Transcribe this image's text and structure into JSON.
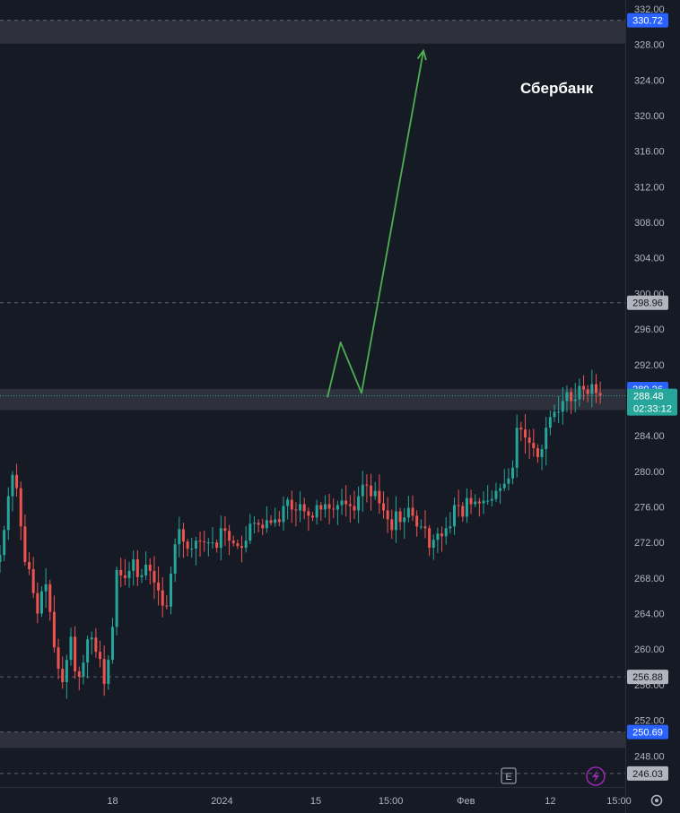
{
  "chart_data": {
    "type": "candlestick",
    "title": "Сбербанк",
    "y_axis": {
      "range": [
        244.5,
        333.0
      ],
      "ticks": [
        "332.00",
        "328.00",
        "324.00",
        "320.00",
        "316.00",
        "312.00",
        "308.00",
        "304.00",
        "300.00",
        "296.00",
        "292.00",
        "288.00",
        "284.00",
        "280.00",
        "276.00",
        "272.00",
        "268.00",
        "264.00",
        "260.00",
        "256.00",
        "252.00",
        "248.00"
      ]
    },
    "x_axis": {
      "ticks": [
        {
          "label": "18",
          "x": 0.18
        },
        {
          "label": "2024",
          "x": 0.355
        },
        {
          "label": "15",
          "x": 0.505
        },
        {
          "label": "15:00",
          "x": 0.625
        },
        {
          "label": "Фев",
          "x": 0.745
        },
        {
          "label": "12",
          "x": 0.88
        },
        {
          "label": "15:00",
          "x": 0.99
        }
      ]
    },
    "zones": [
      {
        "from": 328.1,
        "to": 330.72,
        "color": "#2e313c"
      },
      {
        "from": 286.9,
        "to": 289.26,
        "color": "#2e313c"
      },
      {
        "from": 248.9,
        "to": 250.69,
        "color": "#2e313c"
      }
    ],
    "dashed_levels": [
      330.72,
      298.96,
      256.88,
      250.69,
      246.03
    ],
    "price_tags": [
      {
        "label": "330.72",
        "value": 330.72,
        "color": "#2962ff"
      },
      {
        "label": "298.96",
        "value": 298.96,
        "color": "#b2b5be"
      },
      {
        "label": "289.26",
        "value": 289.26,
        "color": "#2962ff"
      },
      {
        "label": "256.88",
        "value": 256.88,
        "color": "#b2b5be"
      },
      {
        "label": "250.69",
        "value": 250.69,
        "color": "#2962ff"
      },
      {
        "label": "246.03",
        "value": 246.03,
        "color": "#b2b5be"
      }
    ],
    "last_price": {
      "label": "288.48",
      "countdown": "02:33:12",
      "value": 288.48,
      "color": "#26a69a"
    },
    "forecast_arrow": {
      "color": "#4caf50",
      "points": [
        [
          0.0,
          288.3
        ],
        [
          0.077,
          294.5
        ],
        [
          0.2,
          288.8
        ],
        [
          0.563,
          327.3
        ]
      ]
    },
    "close_series": [
      270.6,
      273.4,
      277.2,
      279.6,
      278.1,
      273.8,
      269.8,
      269.0,
      266.3,
      264.0,
      266.5,
      267.3,
      264.2,
      260.2,
      257.8,
      256.3,
      258.8,
      261.4,
      257.5,
      256.9,
      258.5,
      261.1,
      261.3,
      259.7,
      258.9,
      256.1,
      258.8,
      262.5,
      268.9,
      268.3,
      268.0,
      268.8,
      270.1,
      268.1,
      268.3,
      269.5,
      268.8,
      267.5,
      266.6,
      264.9,
      264.8,
      268.5,
      271.8,
      273.5,
      272.1,
      271.3,
      271.3,
      272.2,
      272.1,
      272.0,
      272.0,
      272.0,
      271.4,
      273.6,
      273.3,
      272.2,
      271.9,
      271.6,
      271.4,
      272.2,
      274.1,
      274.2,
      274.0,
      273.6,
      274.5,
      274.2,
      274.6,
      274.3,
      276.1,
      276.8,
      275.7,
      275.6,
      276.3,
      275.5,
      275.0,
      274.8,
      276.2,
      275.7,
      276.3,
      275.8,
      275.7,
      276.2,
      276.7,
      276.3,
      276.1,
      275.6,
      277.2,
      278.5,
      278.4,
      277.2,
      277.8,
      276.4,
      275.6,
      274.6,
      273.4,
      275.5,
      274.3,
      274.8,
      275.9,
      275.0,
      273.8,
      273.8,
      273.6,
      271.4,
      272.3,
      273.0,
      272.7,
      273.6,
      273.8,
      276.2,
      276.1,
      274.9,
      277.0,
      276.3,
      276.6,
      276.4,
      276.7,
      276.7,
      276.9,
      277.8,
      278.1,
      278.6,
      279.2,
      280.4,
      284.9,
      284.7,
      283.8,
      283.2,
      282.6,
      281.6,
      282.5,
      284.9,
      286.1,
      286.7,
      286.7,
      287.9,
      288.9,
      287.9,
      288.1,
      289.6,
      289.2,
      288.7,
      289.8,
      288.8,
      288.5
    ],
    "series_range": {
      "from": 0.0,
      "to": 0.96
    }
  },
  "toolbar": {
    "e_label": "E",
    "lightning_icon": "lightning-icon",
    "settings_icon": "gear-icon"
  },
  "colors": {
    "up": "#26a69a",
    "down": "#ef5350",
    "axis_border": "#2a2e39",
    "dash": "#5d606b"
  }
}
